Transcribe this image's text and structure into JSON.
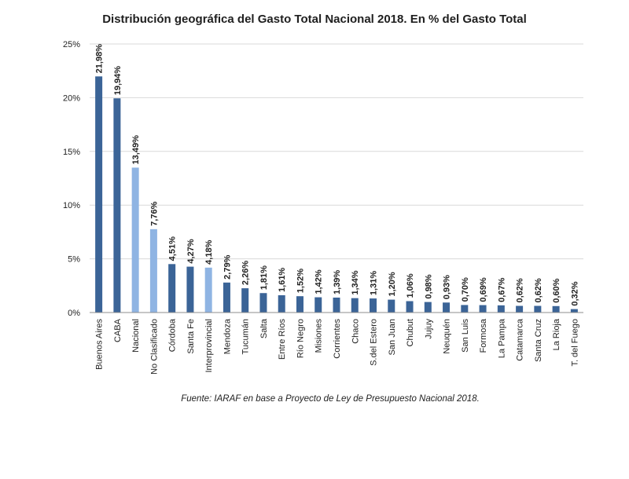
{
  "chart_data": {
    "type": "bar",
    "title": "Distribución geográfica del Gasto Total Nacional 2018. En % del Gasto Total",
    "source": "Fuente: IARAF en base a Proyecto de Ley de Presupuesto Nacional 2018.",
    "categories": [
      "Buenos Aires",
      "CABA",
      "Nacional",
      "No Clasificado",
      "Córdoba",
      "Santa Fe",
      "Interprovincial",
      "Mendoza",
      "Tucumán",
      "Salta",
      "Entre Ríos",
      "Río Negro",
      "Misiones",
      "Corrientes",
      "Chaco",
      "S.del Estero",
      "San Juan",
      "Chubut",
      "Jujuy",
      "Neuquén",
      "San Luis",
      "Formosa",
      "La Pampa",
      "Catamarca",
      "Santa Cruz",
      "La Rioja",
      "T. del Fuego"
    ],
    "values": [
      21.98,
      19.94,
      13.49,
      7.76,
      4.51,
      4.27,
      4.18,
      2.79,
      2.26,
      1.81,
      1.61,
      1.52,
      1.42,
      1.39,
      1.34,
      1.31,
      1.2,
      1.06,
      0.98,
      0.93,
      0.7,
      0.69,
      0.67,
      0.62,
      0.62,
      0.6,
      0.32
    ],
    "value_labels": [
      "21,98%",
      "19,94%",
      "13,49%",
      "7,76%",
      "4,51%",
      "4,27%",
      "4,18%",
      "2,79%",
      "2,26%",
      "1,81%",
      "1,61%",
      "1,52%",
      "1,42%",
      "1,39%",
      "1,34%",
      "1,31%",
      "1,20%",
      "1,06%",
      "0,98%",
      "0,93%",
      "0,70%",
      "0,69%",
      "0,67%",
      "0,62%",
      "0,62%",
      "0,60%",
      "0,32%"
    ],
    "highlighted_categories": [
      "Nacional",
      "No Clasificado",
      "Interprovincial"
    ],
    "ylim": [
      0,
      25
    ],
    "yticks": [
      0,
      5,
      10,
      15,
      20,
      25
    ],
    "ytick_labels": [
      "0%",
      "5%",
      "10%",
      "15%",
      "20%",
      "25%"
    ],
    "grid": true,
    "colors": {
      "primary": "#3b6497",
      "highlight": "#8fb4e3",
      "grid": "#d9d9d9",
      "axis": "#8c8c8c"
    }
  }
}
